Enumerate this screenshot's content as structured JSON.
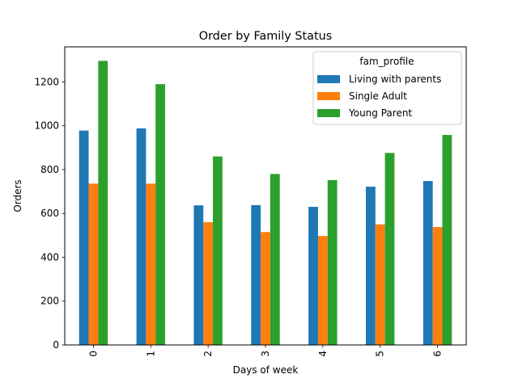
{
  "chart_data": {
    "type": "bar",
    "title": "Order by Family Status",
    "xlabel": "Days of week",
    "ylabel": "Orders",
    "categories": [
      "0",
      "1",
      "2",
      "3",
      "4",
      "5",
      "6"
    ],
    "ylim": [
      0,
      1360
    ],
    "yticks": [
      0,
      200,
      400,
      600,
      800,
      1000,
      1200
    ],
    "grid": false,
    "legend": {
      "title": "fam_profile",
      "placement": "top-right"
    },
    "series": [
      {
        "name": "Living with parents",
        "color": "#1f77b4",
        "values": [
          978,
          988,
          637,
          638,
          630,
          722,
          748
        ]
      },
      {
        "name": "Single Adult",
        "color": "#ff7f0e",
        "values": [
          736,
          736,
          560,
          515,
          497,
          550,
          538
        ]
      },
      {
        "name": "Young Parent",
        "color": "#2ca02c",
        "values": [
          1296,
          1190,
          860,
          780,
          752,
          876,
          958
        ]
      }
    ]
  }
}
